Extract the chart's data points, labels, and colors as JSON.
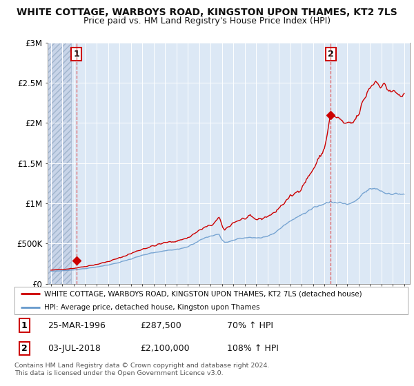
{
  "title": "WHITE COTTAGE, WARBOYS ROAD, KINGSTON UPON THAMES, KT2 7LS",
  "subtitle": "Price paid vs. HM Land Registry's House Price Index (HPI)",
  "title_fontsize": 10,
  "subtitle_fontsize": 9,
  "plot_bg_color": "#dce8f5",
  "hatch_bg_color": "#c8d4e8",
  "grid_color": "#ffffff",
  "red_line_color": "#cc0000",
  "blue_line_color": "#6699cc",
  "marker_color": "#cc0000",
  "dashed_line_color": "#dd4444",
  "ylim": [
    0,
    3000000
  ],
  "yticks": [
    0,
    500000,
    1000000,
    1500000,
    2000000,
    2500000,
    3000000
  ],
  "ytick_labels": [
    "£0",
    "£500K",
    "£1M",
    "£1.5M",
    "£2M",
    "£2.5M",
    "£3M"
  ],
  "point1_x": 1996.23,
  "point1_y": 287500,
  "point1_label": "1",
  "point1_date": "25-MAR-1996",
  "point1_price": "£287,500",
  "point1_hpi": "70% ↑ HPI",
  "point2_x": 2018.54,
  "point2_y": 2100000,
  "point2_label": "2",
  "point2_date": "03-JUL-2018",
  "point2_price": "£2,100,000",
  "point2_hpi": "108% ↑ HPI",
  "legend_line1": "WHITE COTTAGE, WARBOYS ROAD, KINGSTON UPON THAMES, KT2 7LS (detached house)",
  "legend_line2": "HPI: Average price, detached house, Kingston upon Thames",
  "footer": "Contains HM Land Registry data © Crown copyright and database right 2024.\nThis data is licensed under the Open Government Licence v3.0.",
  "hatch_x_start": 1993.7,
  "hatch_x_end": 1995.75,
  "xlim_start": 1993.7,
  "xlim_end": 2025.5
}
